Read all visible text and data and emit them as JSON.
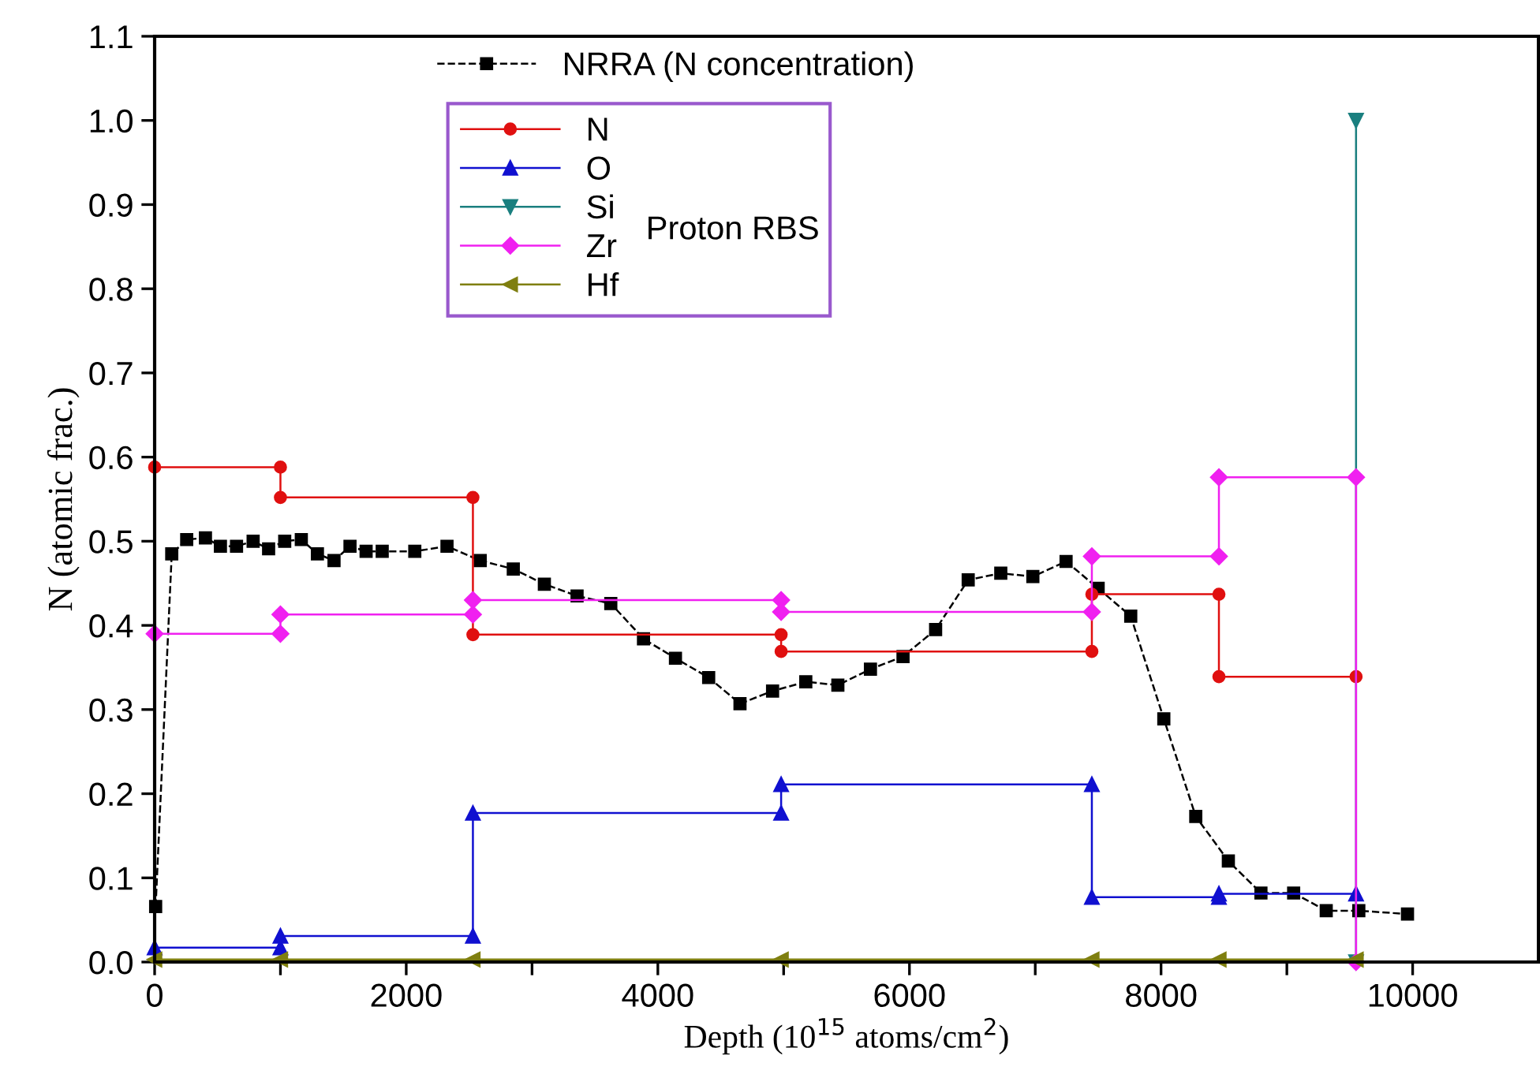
{
  "chart_data": {
    "type": "line",
    "xlabel": "Depth (10$^{15}$ atoms/cm$^{2}$)",
    "ylabel": "N (atomic frac.)",
    "xlim": [
      0,
      11000
    ],
    "ylim": [
      0,
      1.1
    ],
    "xticks": [
      0,
      {
        "value": 1000,
        "label": null
      },
      2000,
      {
        "value": 3000,
        "label": null
      },
      4000,
      {
        "value": 5000,
        "label": null
      },
      6000,
      {
        "value": 7000,
        "label": null
      },
      8000,
      {
        "value": 9000,
        "label": null
      },
      10000
    ],
    "yticks": [
      {
        "value": 0,
        "label": "0.0"
      },
      0.1,
      0.2,
      0.3,
      0.4,
      0.5,
      0.6,
      0.7,
      0.8,
      0.9,
      {
        "value": 1,
        "label": "1.0"
      },
      1.1
    ],
    "grid": false,
    "legend": "top",
    "annotations": [
      "Proton RBS"
    ],
    "series": [
      {
        "name": "NRRA (N concentration)",
        "color": "#000000",
        "marker": "square",
        "line_style": "dashed",
        "x": [
          8,
          136,
          255,
          404,
          523,
          651,
          783,
          906,
          1034,
          1166,
          1294,
          1426,
          1553,
          1681,
          1809,
          2068,
          2324,
          2588,
          2851,
          3098,
          3358,
          3626,
          3886,
          4140,
          4404,
          4653,
          4912,
          5176,
          5431,
          5690,
          5949,
          6208,
          6467,
          6726,
          6981,
          7245,
          7500,
          7759,
          8022,
          8276,
          8535,
          8794,
          9054,
          9313,
          9572,
          9959
        ],
        "values": [
          0.066,
          0.485,
          0.502,
          0.504,
          0.494,
          0.494,
          0.5,
          0.491,
          0.5,
          0.502,
          0.485,
          0.477,
          0.494,
          0.488,
          0.488,
          0.488,
          0.494,
          0.477,
          0.467,
          0.449,
          0.435,
          0.426,
          0.384,
          0.361,
          0.338,
          0.307,
          0.322,
          0.333,
          0.329,
          0.348,
          0.363,
          0.395,
          0.454,
          0.462,
          0.458,
          0.476,
          0.444,
          0.411,
          0.289,
          0.173,
          0.12,
          0.082,
          0.082,
          0.061,
          0.061,
          0.057
        ]
      },
      {
        "name": "N",
        "color": "#e01010",
        "marker": "circle",
        "line_style": "solid",
        "x": [
          0,
          1000,
          1000,
          2530,
          2530,
          4980,
          4980,
          7450,
          7450,
          8460,
          8460,
          9550
        ],
        "values": [
          0.588,
          0.588,
          0.552,
          0.552,
          0.389,
          0.389,
          0.369,
          0.369,
          0.437,
          0.437,
          0.339,
          0.339
        ]
      },
      {
        "name": "O",
        "color": "#1010d0",
        "marker": "triangle",
        "line_style": "solid",
        "x": [
          0,
          1000,
          1000,
          2530,
          2530,
          4980,
          4980,
          7450,
          7450,
          8460,
          8460,
          9550
        ],
        "values": [
          0.017,
          0.017,
          0.031,
          0.031,
          0.177,
          0.177,
          0.211,
          0.211,
          0.077,
          0.077,
          0.081,
          0.081
        ]
      },
      {
        "name": "Si",
        "color": "#1a7f7f",
        "marker": "triangle_down",
        "line_style": "solid",
        "x": [
          9550,
          9550
        ],
        "values": [
          0,
          1.0
        ]
      },
      {
        "name": "Zr",
        "color": "#f020f0",
        "marker": "diamond",
        "line_style": "solid",
        "x": [
          0,
          1000,
          1000,
          2530,
          2530,
          4980,
          4980,
          7450,
          7450,
          8460,
          8460,
          9550,
          9550
        ],
        "values": [
          0.39,
          0.39,
          0.413,
          0.413,
          0.43,
          0.43,
          0.416,
          0.416,
          0.482,
          0.482,
          0.576,
          0.576,
          0
        ]
      },
      {
        "name": "Hf",
        "color": "#7f7f10",
        "marker": "triangle_left",
        "line_style": "solid",
        "x": [
          0,
          1000,
          2530,
          4980,
          7450,
          8460,
          9550
        ],
        "values": [
          0.003,
          0.003,
          0.003,
          0.003,
          0.003,
          0.003,
          0.003
        ]
      }
    ]
  }
}
